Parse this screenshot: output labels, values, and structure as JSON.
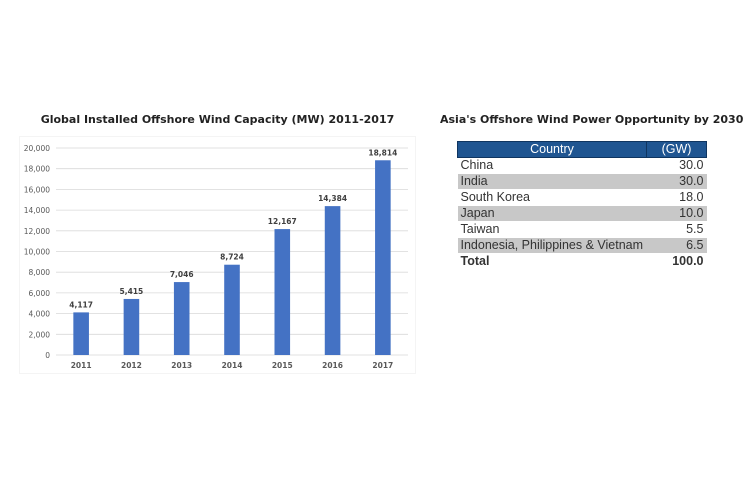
{
  "chart_data": [
    {
      "type": "bar",
      "title": "Global Installed Offshore Wind Capacity (MW) 2011-2017",
      "xlabel": "",
      "ylabel": "",
      "categories": [
        "2011",
        "2012",
        "2013",
        "2014",
        "2015",
        "2016",
        "2017"
      ],
      "values": [
        4117,
        5415,
        7046,
        8724,
        12167,
        14384,
        18814
      ],
      "value_labels": [
        "4,117",
        "5,415",
        "7,046",
        "8,724",
        "12,167",
        "14,384",
        "18,814"
      ],
      "ylim": [
        0,
        20000
      ],
      "yticks": [
        0,
        2000,
        4000,
        6000,
        8000,
        10000,
        12000,
        14000,
        16000,
        18000,
        20000
      ],
      "ytick_labels": [
        "0",
        "2,000",
        "4,000",
        "6,000",
        "8,000",
        "10,000",
        "12,000",
        "14,000",
        "16,000",
        "18,000",
        "20,000"
      ],
      "grid": true,
      "legend": "none",
      "bar_color": "#4472c4"
    },
    {
      "type": "table",
      "title": "Asia's Offshore Wind Power Opportunity by 2030",
      "columns": [
        "Country",
        "(GW)"
      ],
      "rows": [
        {
          "country": "China",
          "gw": "30.0"
        },
        {
          "country": "India",
          "gw": "30.0"
        },
        {
          "country": "South Korea",
          "gw": "18.0"
        },
        {
          "country": "Japan",
          "gw": "10.0"
        },
        {
          "country": "Taiwan",
          "gw": "5.5"
        },
        {
          "country": "Indonesia, Philippines & Vietnam",
          "gw": "6.5"
        }
      ],
      "total": {
        "label": "Total",
        "gw": "100.0"
      },
      "header_color": "#1f5591",
      "shade_color": "#c8c8c8"
    }
  ]
}
